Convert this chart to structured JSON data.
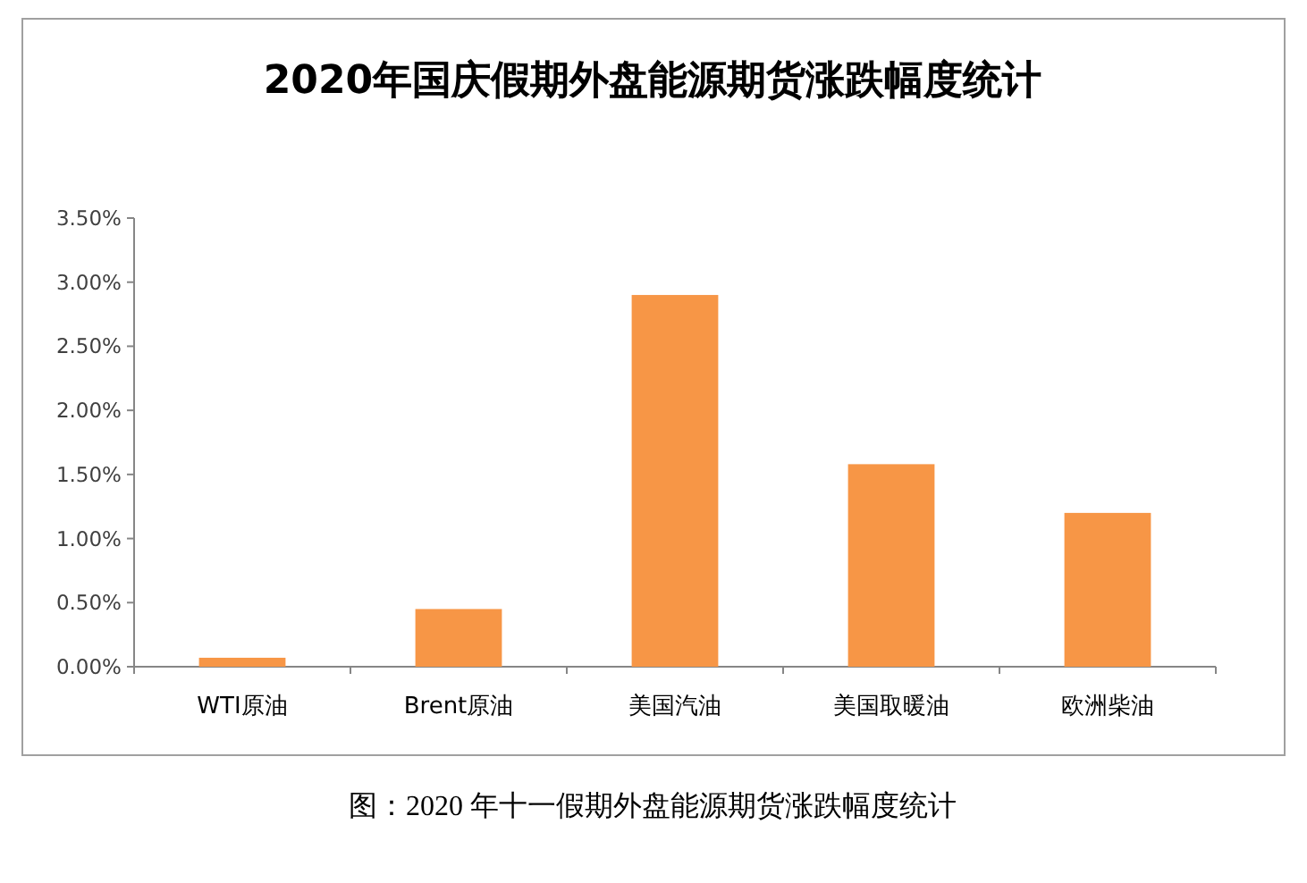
{
  "chart_data": {
    "type": "bar",
    "title": "2020年国庆假期外盘能源期货涨跌幅度统计",
    "categories": [
      "WTI原油",
      "Brent原油",
      "美国汽油",
      "美国取暖油",
      "欧洲柴油"
    ],
    "values": [
      0.07,
      0.45,
      2.9,
      1.58,
      1.2
    ],
    "color": "#f79646",
    "ylim": [
      0,
      3.5
    ],
    "yticks": [
      {
        "value": 0,
        "label": "0.00%"
      },
      {
        "value": 0.5,
        "label": "0.50%"
      },
      {
        "value": 1,
        "label": "1.00%"
      },
      {
        "value": 1.5,
        "label": "1.50%"
      },
      {
        "value": 2,
        "label": "2.00%"
      },
      {
        "value": 2.5,
        "label": "2.50%"
      },
      {
        "value": 3,
        "label": "3.00%"
      },
      {
        "value": 3.5,
        "label": "3.50%"
      }
    ],
    "grid": false,
    "annotations": [
      "图：2020 年十一假期外盘能源期货涨跌幅度统计"
    ]
  }
}
